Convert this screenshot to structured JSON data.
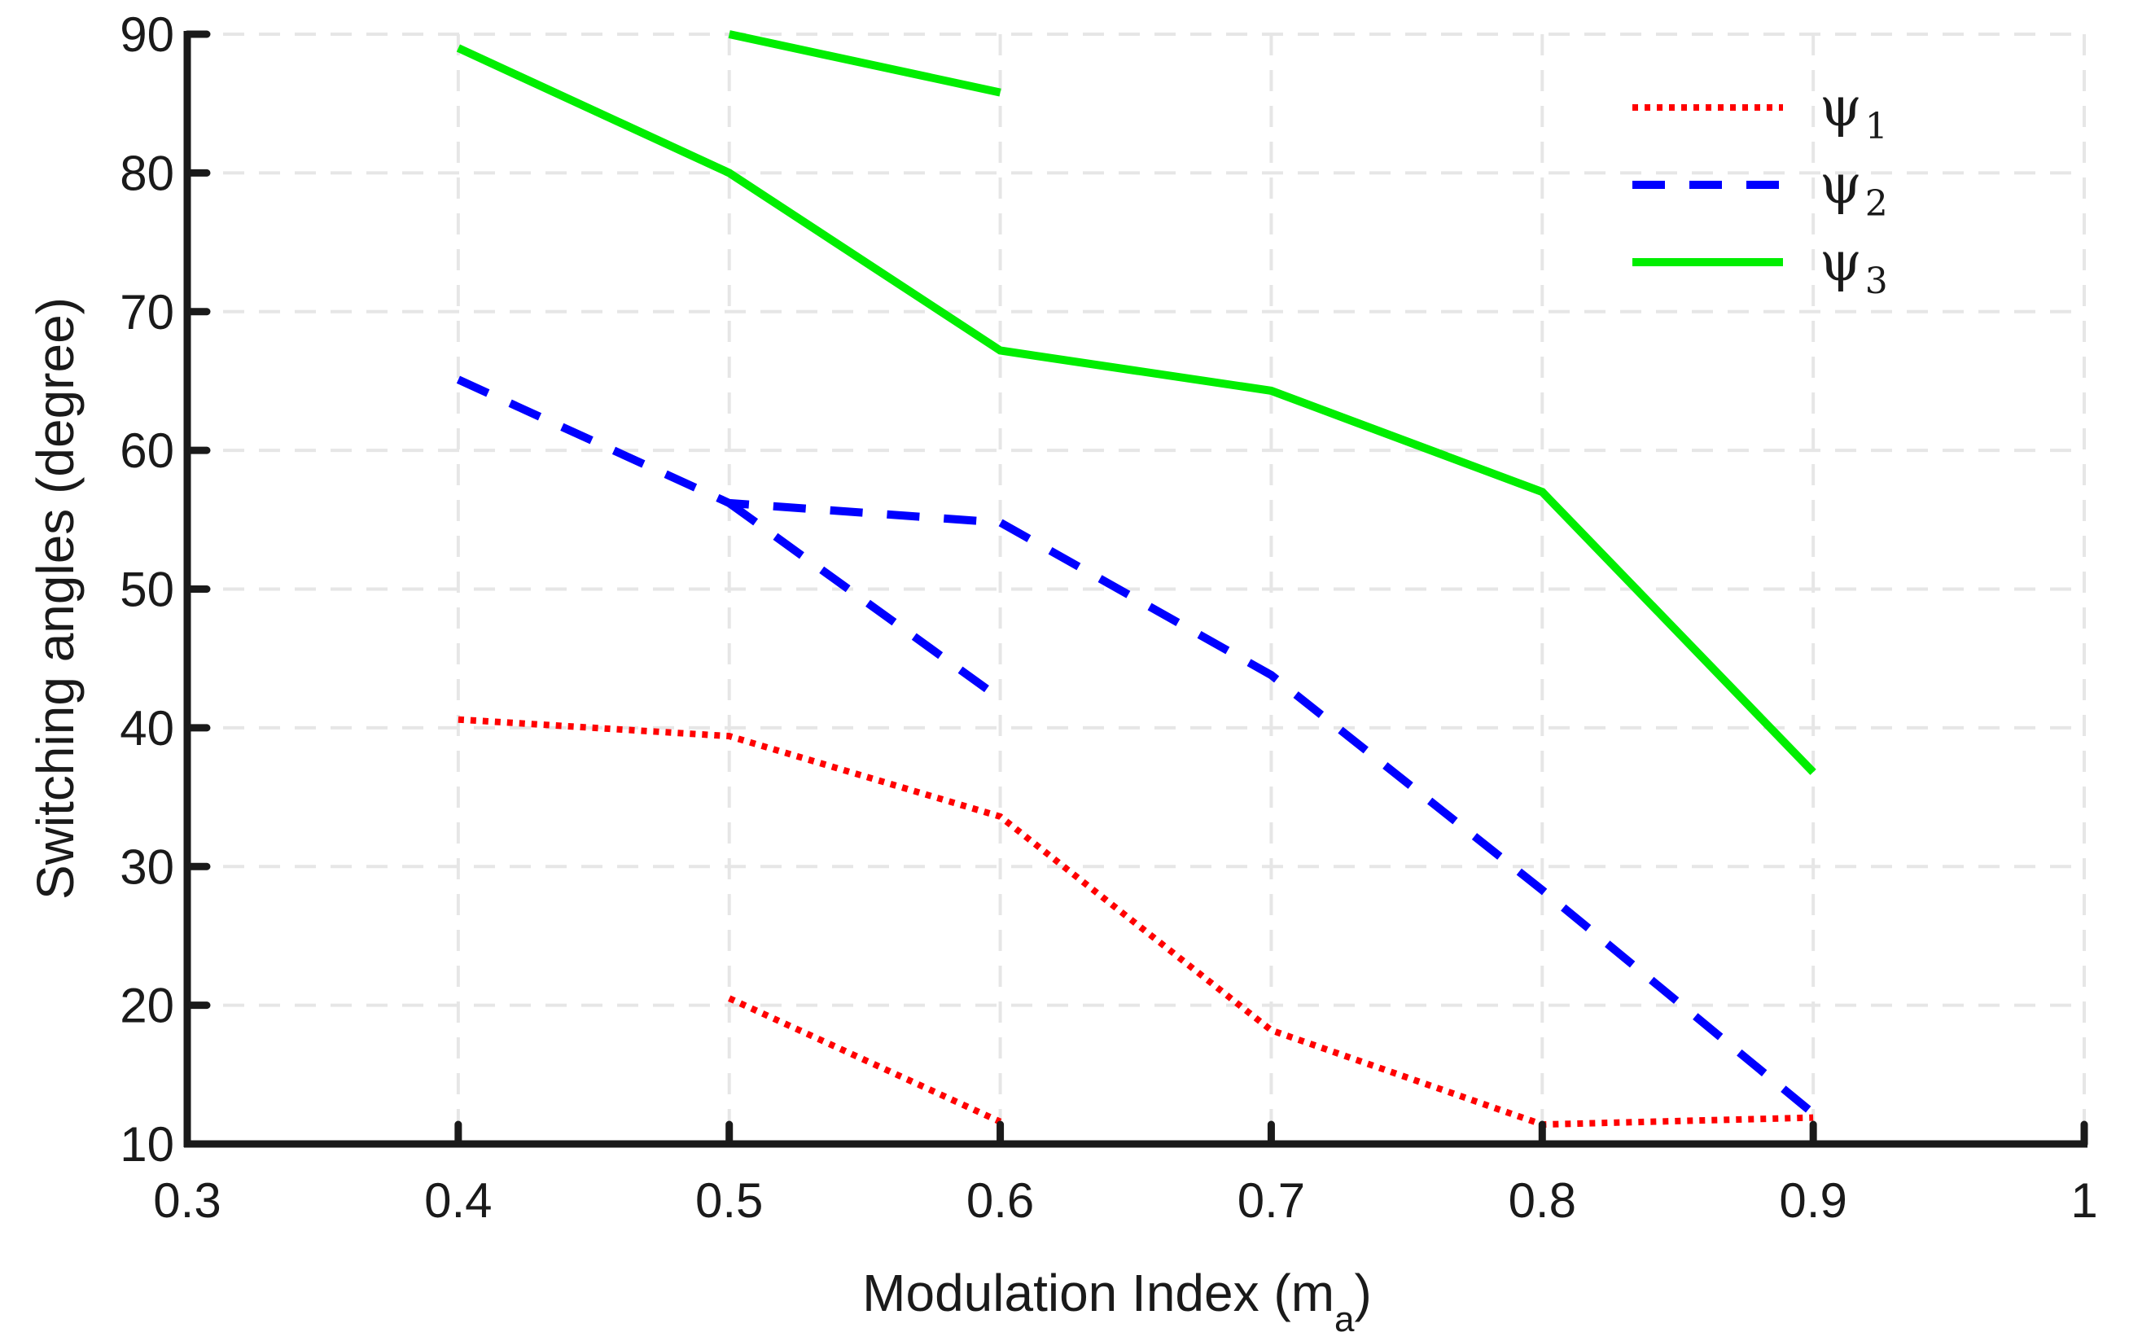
{
  "chart_data": {
    "type": "line",
    "title": "",
    "xlabel": "Modulation Index (m",
    "xlabel_sub": "a",
    "xlabel_close": ")",
    "ylabel": "Switching angles (degree)",
    "xlim": [
      0.3,
      1.0
    ],
    "ylim": [
      10,
      90
    ],
    "xticks": [
      0.3,
      0.4,
      0.5,
      0.6,
      0.7,
      0.8,
      0.9,
      1.0
    ],
    "xtick_labels": [
      "0.3",
      "0.4",
      "0.5",
      "0.6",
      "0.7",
      "0.8",
      "0.9",
      "1"
    ],
    "yticks": [
      10,
      20,
      30,
      40,
      50,
      60,
      70,
      80,
      90
    ],
    "ytick_labels": [
      "10",
      "20",
      "30",
      "40",
      "50",
      "60",
      "70",
      "80",
      "90"
    ],
    "grid": true,
    "legend_position": "top-right",
    "series": [
      {
        "name": "ψ1",
        "base": "ψ",
        "sub": "1",
        "color": "#ff0000",
        "style": "dotted",
        "segments": [
          {
            "x": [
              0.4,
              0.5,
              0.6,
              0.7,
              0.8,
              0.9
            ],
            "y": [
              40.6,
              39.4,
              33.6,
              18.2,
              11.4,
              11.9
            ]
          },
          {
            "x": [
              0.5,
              0.6
            ],
            "y": [
              20.5,
              11.6
            ]
          }
        ]
      },
      {
        "name": "ψ2",
        "base": "ψ",
        "sub": "2",
        "color": "#0000ff",
        "style": "dashed",
        "segments": [
          {
            "x": [
              0.4,
              0.5,
              0.6,
              0.7,
              0.8,
              0.9
            ],
            "y": [
              65.1,
              56.2,
              54.8,
              43.8,
              28.3,
              12.2
            ]
          },
          {
            "x": [
              0.5,
              0.6
            ],
            "y": [
              56.2,
              42.1
            ]
          }
        ]
      },
      {
        "name": "ψ3",
        "base": "ψ",
        "sub": "3",
        "color": "#00ee00",
        "style": "solid",
        "segments": [
          {
            "x": [
              0.4,
              0.5,
              0.6,
              0.7,
              0.8,
              0.9
            ],
            "y": [
              89.0,
              80.0,
              67.2,
              64.3,
              57.0,
              36.8
            ]
          },
          {
            "x": [
              0.5,
              0.6
            ],
            "y": [
              90.0,
              85.8
            ]
          }
        ]
      }
    ]
  }
}
